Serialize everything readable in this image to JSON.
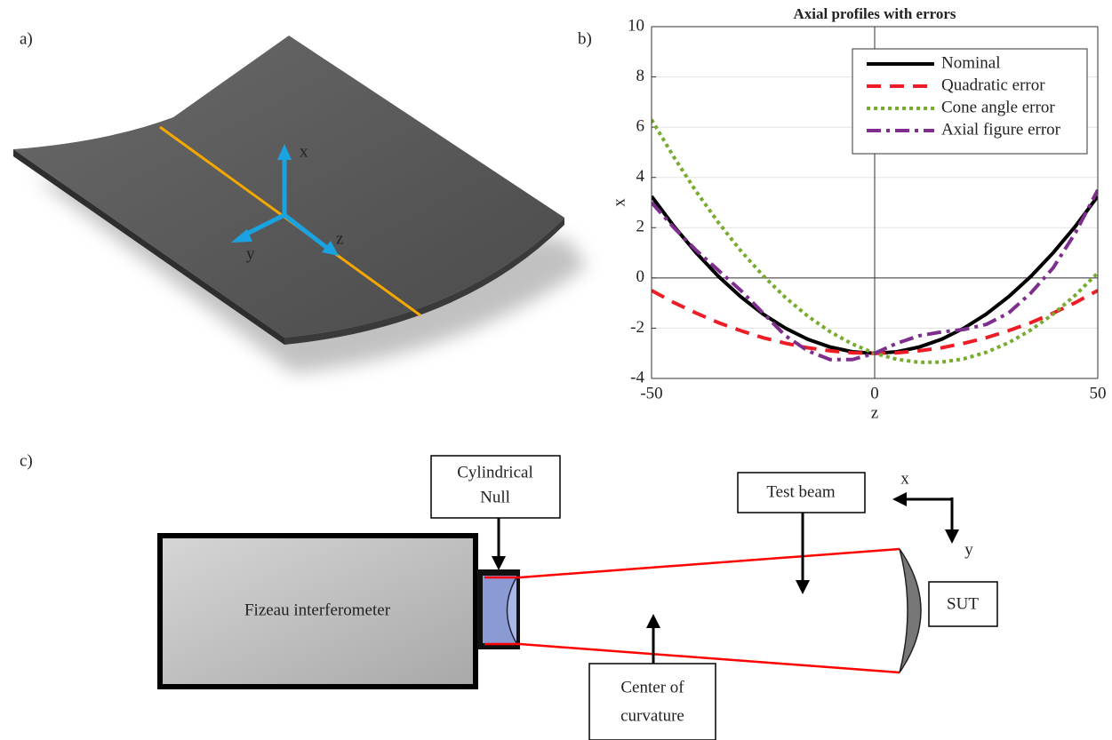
{
  "panel_labels": [
    "a)",
    "b)",
    "c)"
  ],
  "panel_a": {
    "axis_labels": [
      "x",
      "y",
      "z"
    ]
  },
  "chart_data": {
    "type": "line",
    "title": "Axial profiles with errors",
    "x_label": "z",
    "y_label": "x",
    "x": [
      -50,
      -45,
      -40,
      -35,
      -30,
      -25,
      -20,
      -15,
      -10,
      -5,
      0,
      5,
      10,
      15,
      20,
      25,
      30,
      35,
      40,
      45,
      50
    ],
    "series": [
      {
        "name": "Nominal",
        "color": "#000000",
        "style": "solid",
        "values": [
          3.25,
          2.06,
          1.0,
          0.06,
          -0.75,
          -1.44,
          -2.0,
          -2.44,
          -2.75,
          -2.94,
          -3.0,
          -2.94,
          -2.75,
          -2.44,
          -2.0,
          -1.44,
          -0.75,
          0.06,
          1.0,
          2.06,
          3.25
        ]
      },
      {
        "name": "Quadratic error",
        "color": "#ee1c25",
        "style": "dashed",
        "values": [
          -0.5,
          -0.98,
          -1.4,
          -1.78,
          -2.1,
          -2.38,
          -2.6,
          -2.78,
          -2.9,
          -2.98,
          -3.0,
          -2.98,
          -2.9,
          -2.78,
          -2.6,
          -2.38,
          -2.1,
          -1.78,
          -1.4,
          -0.98,
          -0.5
        ]
      },
      {
        "name": "Cone angle error",
        "color": "#77ac30",
        "style": "dotted",
        "values": [
          6.3,
          4.81,
          3.44,
          2.2,
          1.08,
          0.09,
          -0.78,
          -1.52,
          -2.14,
          -2.63,
          -3.0,
          -3.24,
          -3.36,
          -3.35,
          -3.22,
          -2.96,
          -2.58,
          -2.07,
          -1.44,
          -0.68,
          0.2
        ]
      },
      {
        "name": "Axial figure error",
        "color": "#7e2f8e",
        "style": "dashdot",
        "values": [
          3.0,
          2.0,
          1.1,
          0.3,
          -0.5,
          -1.4,
          -2.3,
          -2.9,
          -3.25,
          -3.25,
          -3.0,
          -2.6,
          -2.3,
          -2.15,
          -2.05,
          -1.85,
          -1.4,
          -0.6,
          0.4,
          1.8,
          3.5
        ]
      }
    ],
    "xlim": [
      -50,
      50
    ],
    "xticks": [
      -50,
      0,
      50
    ],
    "ylim": [
      -4,
      10
    ],
    "yticks": [
      -4,
      -2,
      0,
      2,
      4,
      6,
      8,
      10
    ],
    "grid": true,
    "legend": "upper right"
  },
  "diagram": {
    "interferometer": "Fizeau interferometer",
    "null_label": [
      "Cylindrical",
      "Null"
    ],
    "beam_label": "Test beam",
    "center_label": [
      "Center of",
      "curvature"
    ],
    "sut_label": "SUT",
    "axis_labels": [
      "x",
      "y"
    ]
  }
}
